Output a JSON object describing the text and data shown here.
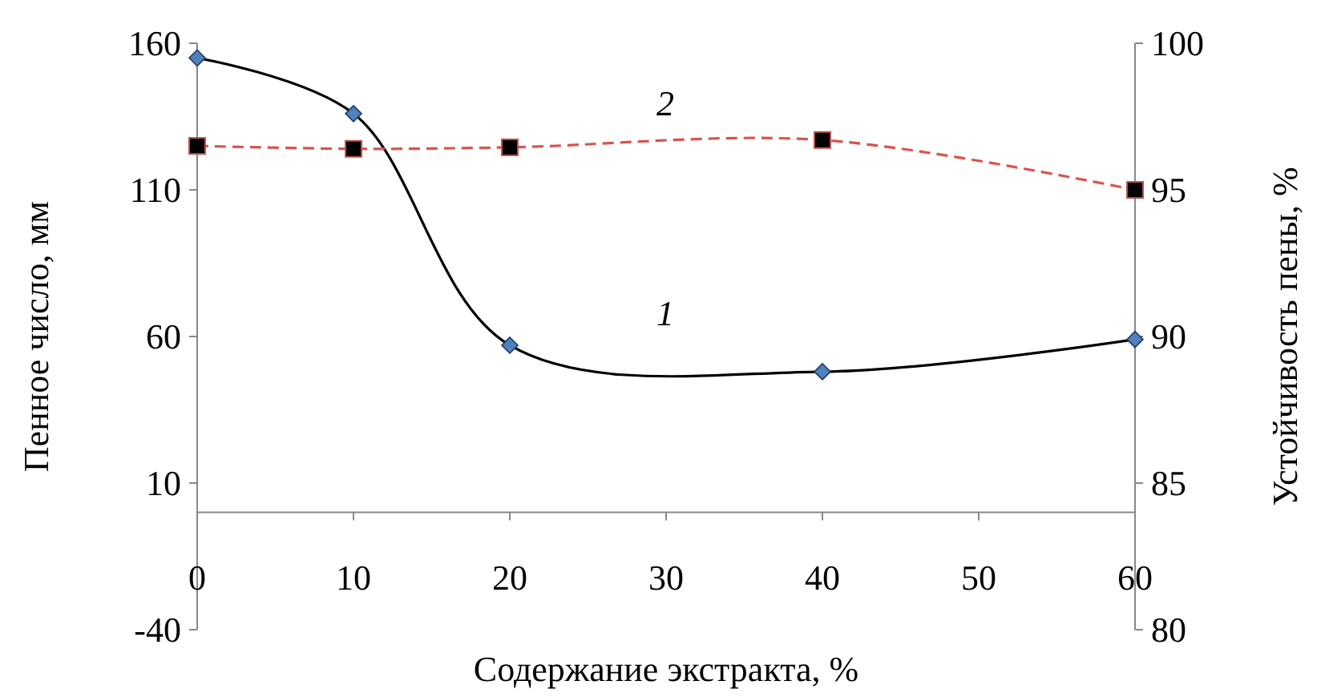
{
  "chart_data": {
    "type": "line",
    "xlabel": "Содержание экстракта, %",
    "ylabel": "Пенное число, мм",
    "y2label": "Устойчивость пены, %",
    "x": [
      0,
      10,
      20,
      40,
      60
    ],
    "xlim": [
      0,
      60
    ],
    "xticks": [
      0,
      10,
      20,
      30,
      40,
      50,
      60
    ],
    "ylim": [
      -40,
      160
    ],
    "yticks": [
      -40,
      10,
      60,
      110,
      160
    ],
    "y2lim": [
      80,
      100
    ],
    "y2ticks": [
      80,
      85,
      90,
      95,
      100
    ],
    "series": [
      {
        "color": "#000000",
        "values": [
          155,
          136,
          57,
          48,
          59
        ],
        "marker": "diamond",
        "line_style": "solid"
      },
      {
        "color": "#d9534f",
        "values": [
          96.5,
          96.4,
          96.45,
          96.7,
          95
        ],
        "axis": "y2",
        "marker": "square",
        "line_style": "dashed"
      }
    ],
    "annotations": [
      "1",
      "2"
    ],
    "grid": false
  }
}
